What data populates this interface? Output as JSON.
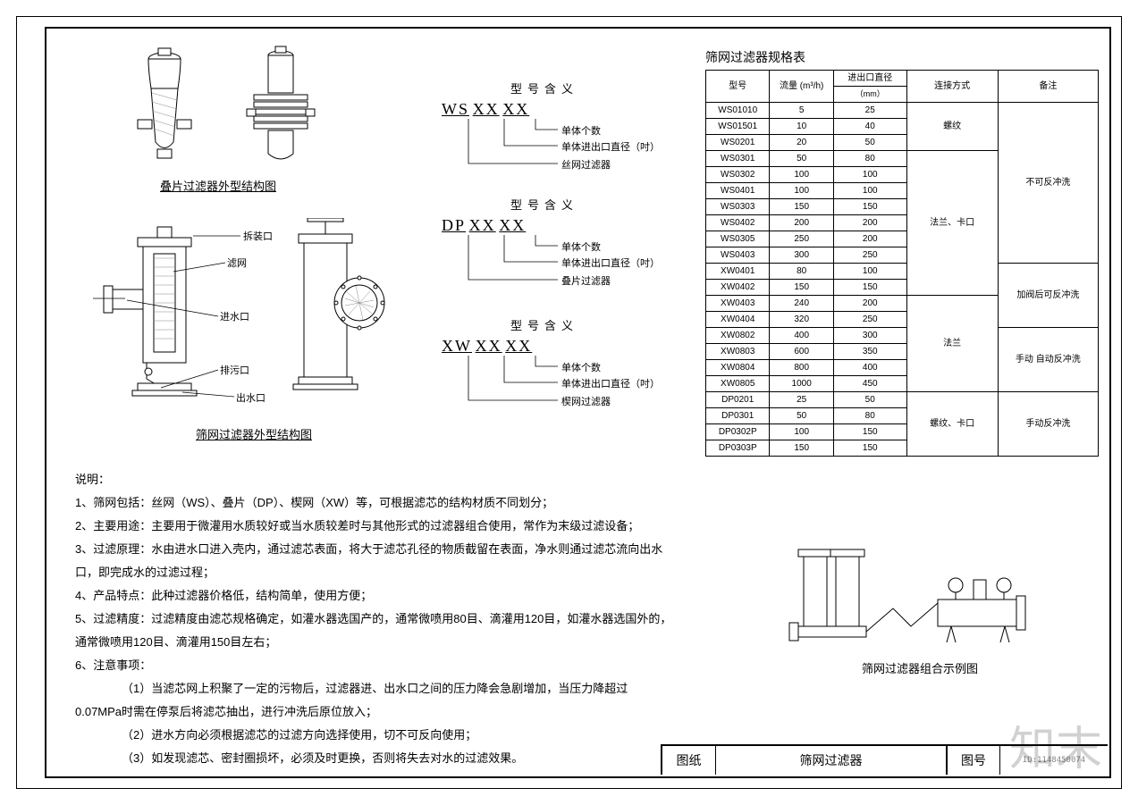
{
  "page": {
    "bg": "#ffffff",
    "fg": "#000000",
    "border_color": "#000000"
  },
  "diagram_top": {
    "caption": "叠片过滤器外型结构图"
  },
  "diagram_mid": {
    "caption": "筛网过滤器外型结构图",
    "labels": {
      "disassembly": "拆装口",
      "screen": "滤网",
      "inlet": "进水口",
      "drain": "排污口",
      "outlet": "出水口"
    }
  },
  "legend_ws": {
    "title": "型号含义",
    "prefix": "WS",
    "mid": "XX",
    "suf": "XX",
    "l1": "单体个数",
    "l2": "单体进出口直径（吋）",
    "l3": "丝网过滤器"
  },
  "legend_dp": {
    "title": "型号含义",
    "prefix": "DP",
    "mid": "XX",
    "suf": "XX",
    "l1": "单体个数",
    "l2": "单体进出口直径（吋）",
    "l3": "叠片过滤器"
  },
  "legend_xw": {
    "title": "型号含义",
    "prefix": "XW",
    "mid": "XX",
    "suf": "XX",
    "l1": "单体个数",
    "l2": "单体进出口直径（吋）",
    "l3": "楔网过滤器"
  },
  "spec_table": {
    "title": "筛网过滤器规格表",
    "headers": {
      "model": "型号",
      "flow": "流量 (m³/h)",
      "port_top": "进出口直径",
      "port_unit": "（mm）",
      "conn": "连接方式",
      "note": "备注"
    },
    "rows": [
      {
        "m": "WS01010",
        "f": "5",
        "p": "25"
      },
      {
        "m": "WS01501",
        "f": "10",
        "p": "40"
      },
      {
        "m": "WS0201",
        "f": "20",
        "p": "50"
      },
      {
        "m": "WS0301",
        "f": "50",
        "p": "80"
      },
      {
        "m": "WS0302",
        "f": "100",
        "p": "100"
      },
      {
        "m": "WS0401",
        "f": "100",
        "p": "100"
      },
      {
        "m": "WS0303",
        "f": "150",
        "p": "150"
      },
      {
        "m": "WS0402",
        "f": "200",
        "p": "200"
      },
      {
        "m": "WS0305",
        "f": "250",
        "p": "200"
      },
      {
        "m": "WS0403",
        "f": "300",
        "p": "250"
      },
      {
        "m": "XW0401",
        "f": "80",
        "p": "100"
      },
      {
        "m": "XW0402",
        "f": "150",
        "p": "150"
      },
      {
        "m": "XW0403",
        "f": "240",
        "p": "200"
      },
      {
        "m": "XW0404",
        "f": "320",
        "p": "250"
      },
      {
        "m": "XW0802",
        "f": "400",
        "p": "300"
      },
      {
        "m": "XW0803",
        "f": "600",
        "p": "350"
      },
      {
        "m": "XW0804",
        "f": "800",
        "p": "400"
      },
      {
        "m": "XW0805",
        "f": "1000",
        "p": "450"
      },
      {
        "m": "DP0201",
        "f": "25",
        "p": "50"
      },
      {
        "m": "DP0301",
        "f": "50",
        "p": "80"
      },
      {
        "m": "DP0302P",
        "f": "100",
        "p": "150"
      },
      {
        "m": "DP0303P",
        "f": "150",
        "p": "150"
      }
    ],
    "conn_groups": [
      {
        "start": 0,
        "span": 3,
        "label": "螺纹"
      },
      {
        "start": 3,
        "span": 9,
        "label": "法兰、卡口"
      },
      {
        "start": 12,
        "span": 6,
        "label": "法兰"
      },
      {
        "start": 18,
        "span": 4,
        "label": "螺纹、卡口"
      }
    ],
    "note_groups": [
      {
        "start": 0,
        "span": 10,
        "label": "不可反冲洗"
      },
      {
        "start": 10,
        "span": 4,
        "label": "加阀后可反冲洗"
      },
      {
        "start": 14,
        "span": 4,
        "label": "手动 自动反冲洗"
      },
      {
        "start": 18,
        "span": 4,
        "label": "手动反冲洗"
      }
    ]
  },
  "explain": {
    "heading": "说明：",
    "p1": "1、筛网包括：丝网（WS）、叠片（DP）、楔网（XW）等，可根据滤芯的结构材质不同划分；",
    "p2": "2、主要用途：主要用于微灌用水质较好或当水质较差时与其他形式的过滤器组合使用，常作为末级过滤设备；",
    "p3": "3、过滤原理：水由进水口进入壳内，通过滤芯表面，将大于滤芯孔径的物质截留在表面，净水则通过滤芯流向出水口，即完成水的过滤过程；",
    "p4": "4、产品特点：此种过滤器价格低，结构简单，使用方便；",
    "p5": "5、过滤精度：过滤精度由滤芯规格确定，如灌水器选国产的，通常微喷用80目、滴灌用120目，如灌水器选国外的，通常微喷用120目、滴灌用150目左右；",
    "p6": "6、注意事项：",
    "p6a": "（1）当滤芯网上积聚了一定的污物后，过滤器进、出水口之间的压力降会急剧增加，当压力降超过0.07MPa时需在停泵后将滤芯抽出，进行冲洗后原位放入；",
    "p6b": "（2）进水方向必须根据滤芯的过滤方向选择使用，切不可反向使用；",
    "p6c": "（3）如发现滤芯、密封圈损坏，必须及时更换，否则将失去对水的过滤效果。"
  },
  "example": {
    "caption": "筛网过滤器组合示例图"
  },
  "titleblock": {
    "left_label": "图纸",
    "title": "筛网过滤器",
    "right_label": "图号",
    "id": "ID:1148450074"
  },
  "watermarks": {
    "brand": "知末"
  }
}
